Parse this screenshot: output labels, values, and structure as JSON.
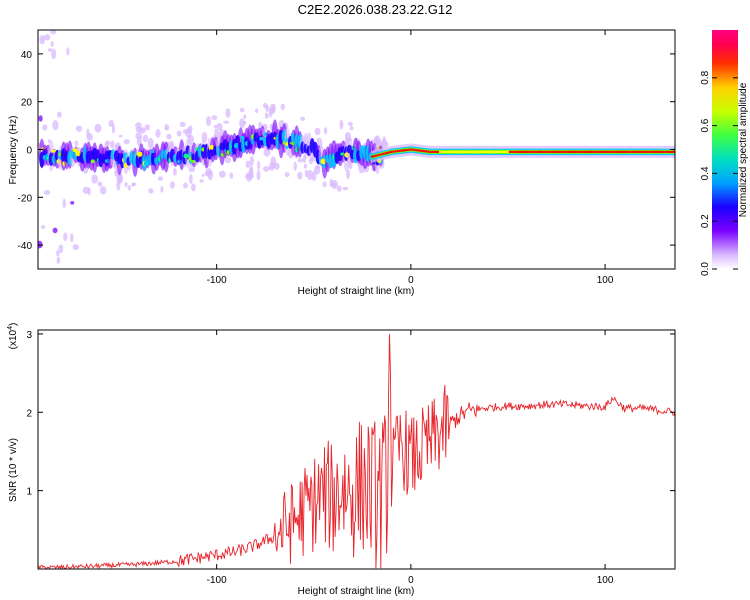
{
  "title": "C2E2.2026.038.23.22.G12",
  "chart_data": [
    {
      "type": "heatmap",
      "name": "spectrogram",
      "xlabel": "Height of straight line (km)",
      "ylabel": "Frequency (Hz)",
      "xlim": [
        -192,
        136
      ],
      "ylim": [
        -50,
        50
      ],
      "x_ticks": [
        -100,
        0,
        100
      ],
      "x_tick_labels": [
        "-100",
        "0",
        "100"
      ],
      "y_ticks": [
        -40,
        -20,
        0,
        20,
        40
      ],
      "y_tick_labels": [
        "-40",
        "-20",
        "0",
        "20",
        "40"
      ],
      "ridge": {
        "x": [
          -192,
          -180,
          -160,
          -140,
          -120,
          -105,
          -95,
          -80,
          -70,
          -60,
          -50,
          -45,
          -40,
          -30,
          -20,
          -10,
          0,
          10,
          20,
          40,
          60,
          80,
          90,
          100,
          110,
          136
        ],
        "frequency_hz": [
          -3,
          -3,
          -3,
          -4,
          -3,
          -2,
          1,
          4,
          5,
          3,
          0,
          -5,
          -3,
          -1,
          -3,
          -1,
          0,
          -1,
          -1,
          -1,
          -1,
          -1,
          -1,
          -1,
          -1,
          -1
        ]
      },
      "colorbar": {
        "label": "Normalized spectral amplitude",
        "range": [
          0,
          1
        ],
        "ticks": [
          0.0,
          0.2,
          0.4,
          0.6,
          0.8
        ],
        "tick_labels": [
          "0.0",
          "0.2",
          "0.4",
          "0.6",
          "0.8"
        ],
        "colors": [
          "#ffffff",
          "#d9b8ff",
          "#7a00ff",
          "#1a00ff",
          "#00c8ff",
          "#00ff7a",
          "#7aff00",
          "#ffff00",
          "#ff8000",
          "#ff0000",
          "#ff0070"
        ]
      }
    },
    {
      "type": "line",
      "name": "snr",
      "xlabel": "Height of straight line (km)",
      "ylabel": "SNR (10 * v/v)",
      "scale_label": "(x10",
      "scale_exponent": "4",
      "scale_suffix": ")",
      "xlim": [
        -192,
        136
      ],
      "ylim": [
        0,
        3.05
      ],
      "x_ticks": [
        -100,
        0,
        100
      ],
      "x_tick_labels": [
        "-100",
        "0",
        "100"
      ],
      "y_ticks": [
        1,
        2,
        3
      ],
      "y_tick_labels": [
        "1",
        "2",
        "3"
      ],
      "color": "#e8232a",
      "series": [
        {
          "name": "SNR",
          "x": [
            -192,
            -180,
            -170,
            -160,
            -150,
            -140,
            -130,
            -120,
            -110,
            -100,
            -90,
            -80,
            -70,
            -60,
            -50,
            -45,
            -40,
            -35,
            -30,
            -25,
            -20,
            -15,
            -12,
            -11,
            -10,
            -8,
            -5,
            0,
            5,
            10,
            15,
            20,
            25,
            30,
            40,
            50,
            60,
            70,
            80,
            90,
            100,
            104,
            110,
            120,
            136
          ],
          "y": [
            0.02,
            0.02,
            0.03,
            0.04,
            0.05,
            0.06,
            0.08,
            0.1,
            0.14,
            0.18,
            0.22,
            0.3,
            0.42,
            0.62,
            0.85,
            0.95,
            0.9,
            1.05,
            0.95,
            1.1,
            1.0,
            0.9,
            1.2,
            3.0,
            1.2,
            1.4,
            1.6,
            1.4,
            1.5,
            1.6,
            1.75,
            1.85,
            1.95,
            2.02,
            2.06,
            2.08,
            2.08,
            2.1,
            2.1,
            2.08,
            2.07,
            2.18,
            2.05,
            2.05,
            2.0
          ]
        }
      ]
    }
  ]
}
